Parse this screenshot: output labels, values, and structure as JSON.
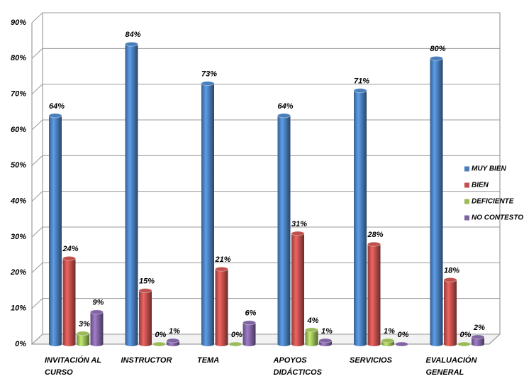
{
  "chart_data": {
    "type": "bar",
    "categories": [
      "INVITACIÓN AL CURSO",
      "INSTRUCTOR",
      "TEMA",
      "APOYOS DIDÁCTICOS",
      "SERVICIOS",
      "EVALUACIÓN GENERAL"
    ],
    "series": [
      {
        "name": "MUY BIEN",
        "color": "#4a7ebb",
        "values": [
          64,
          84,
          73,
          64,
          71,
          80
        ],
        "value_labels": [
          "64%",
          "84%",
          "73%",
          "64%",
          "71%",
          "80%"
        ]
      },
      {
        "name": "BIEN",
        "color": "#c0504d",
        "values": [
          24,
          15,
          21,
          31,
          28,
          18
        ],
        "value_labels": [
          "24%",
          "15%",
          "21%",
          "31%",
          "28%",
          "18%"
        ]
      },
      {
        "name": "DEFICIENTE",
        "color": "#9bbb59",
        "values": [
          3,
          0,
          0,
          4,
          1,
          0
        ],
        "value_labels": [
          "3%",
          "0%",
          "0%",
          "4%",
          "1%",
          "0%"
        ]
      },
      {
        "name": "NO CONTESTO",
        "color": "#8064a2",
        "values": [
          9,
          1,
          6,
          1,
          0,
          2
        ],
        "value_labels": [
          "9%",
          "1%",
          "6%",
          "1%",
          "0%",
          "2%"
        ]
      }
    ],
    "ylim": [
      0,
      90
    ],
    "yticks": [
      {
        "value": 0,
        "label": "0%"
      },
      {
        "value": 10,
        "label": "10%"
      },
      {
        "value": 20,
        "label": "20%"
      },
      {
        "value": 30,
        "label": "30%"
      },
      {
        "value": 40,
        "label": "40%"
      },
      {
        "value": 50,
        "label": "50%"
      },
      {
        "value": 60,
        "label": "60%"
      },
      {
        "value": 70,
        "label": "70%"
      },
      {
        "value": 80,
        "label": "80%"
      },
      {
        "value": 90,
        "label": "90%"
      }
    ],
    "grid": true,
    "legend": "right"
  }
}
